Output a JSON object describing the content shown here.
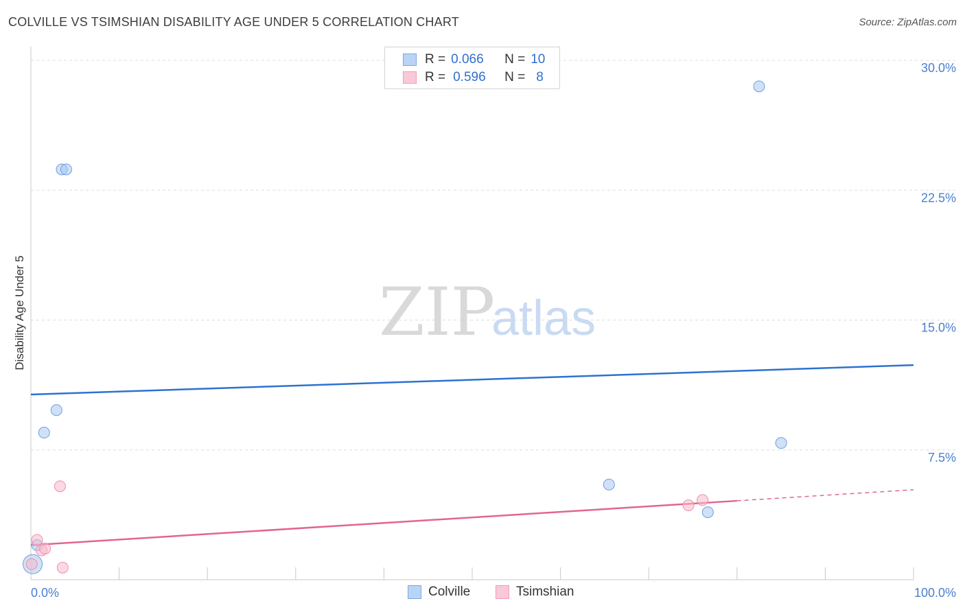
{
  "title": "COLVILLE VS TSIMSHIAN DISABILITY AGE UNDER 5 CORRELATION CHART",
  "source": "Source: ZipAtlas.com",
  "watermark": {
    "zip": "ZIP",
    "atlas": "atlas"
  },
  "legend": {
    "rows": [
      {
        "r_label": "R =",
        "r_value": "0.066",
        "n_label": "N =",
        "n_value": "10"
      },
      {
        "r_label": "R =",
        "r_value": "0.596",
        "n_label": "N =",
        "n_value": "8"
      }
    ]
  },
  "chart_data": {
    "type": "scatter",
    "title": "COLVILLE VS TSIMSHIAN DISABILITY AGE UNDER 5 CORRELATION CHART",
    "xlabel": "",
    "ylabel": "Disability Age Under 5",
    "xlim": [
      0,
      100
    ],
    "ylim": [
      0,
      30
    ],
    "y_ticks": [
      7.5,
      15.0,
      22.5,
      30.0
    ],
    "y_tick_labels": [
      "7.5%",
      "15.0%",
      "22.5%",
      "30.0%"
    ],
    "x_tick_labels": [
      "0.0%",
      "100.0%"
    ],
    "grid": true,
    "legend_placement": "top-center",
    "series": [
      {
        "name": "Colville",
        "color": "#a9c8f0",
        "stroke": "#6d9fe0",
        "line_color": "#2b72d0",
        "points": [
          {
            "x": 0.2,
            "y": 0.9,
            "big": true
          },
          {
            "x": 0.7,
            "y": 2.0
          },
          {
            "x": 1.5,
            "y": 8.5
          },
          {
            "x": 2.9,
            "y": 9.8
          },
          {
            "x": 3.5,
            "y": 23.7
          },
          {
            "x": 4.0,
            "y": 23.7
          },
          {
            "x": 65.5,
            "y": 5.5
          },
          {
            "x": 76.7,
            "y": 3.9
          },
          {
            "x": 82.5,
            "y": 28.5
          },
          {
            "x": 85.0,
            "y": 7.9
          }
        ],
        "trend": {
          "x0": 0,
          "y0": 10.7,
          "x1": 100,
          "y1": 12.4,
          "dash_from": null
        }
      },
      {
        "name": "Tsimshian",
        "color": "#f7b9cb",
        "stroke": "#ee8fab",
        "line_color": "#e0668f",
        "points": [
          {
            "x": 0.1,
            "y": 0.9
          },
          {
            "x": 0.7,
            "y": 2.3
          },
          {
            "x": 1.2,
            "y": 1.7
          },
          {
            "x": 1.6,
            "y": 1.8
          },
          {
            "x": 3.3,
            "y": 5.4
          },
          {
            "x": 3.6,
            "y": 0.7
          },
          {
            "x": 74.5,
            "y": 4.3
          },
          {
            "x": 76.1,
            "y": 4.6
          }
        ],
        "trend": {
          "x0": 0,
          "y0": 2.0,
          "x1": 100,
          "y1": 5.2,
          "dash_from": 80
        }
      }
    ]
  }
}
